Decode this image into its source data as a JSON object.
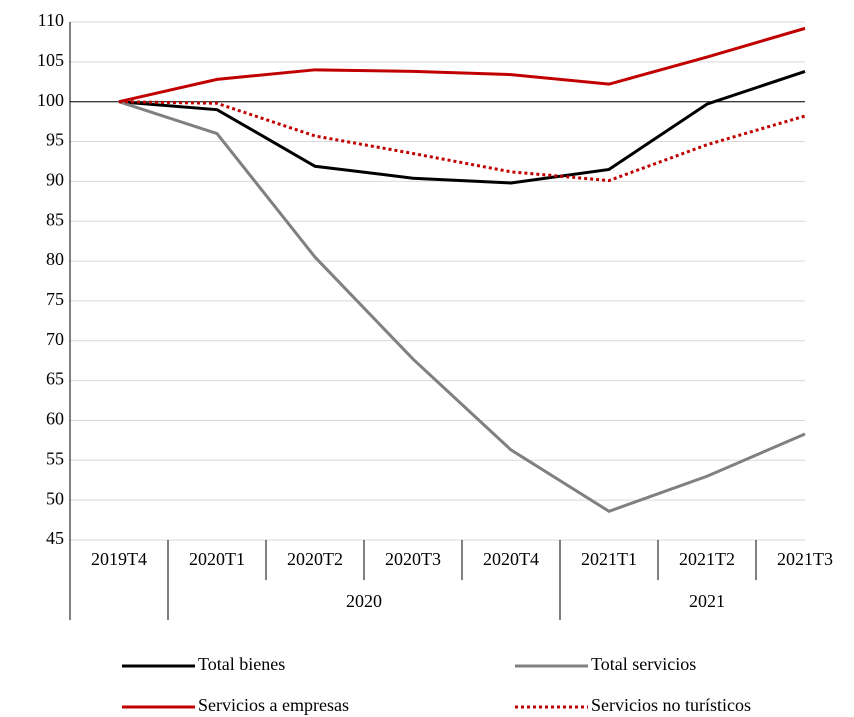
{
  "chart_data": {
    "type": "line",
    "categories": [
      "2019T4",
      "2020T1",
      "2020T2",
      "2020T3",
      "2020T4",
      "2021T1",
      "2021T2",
      "2021T3"
    ],
    "category_groups": [
      null,
      "2020",
      "2020",
      "2020",
      "2020",
      "2021",
      "2021",
      "2021"
    ],
    "series": [
      {
        "name": "Total bienes",
        "color": "#000000",
        "dash": "solid",
        "values": [
          100,
          99.0,
          91.9,
          90.4,
          89.8,
          91.5,
          99.7,
          103.8
        ]
      },
      {
        "name": "Total servicios",
        "color": "#808080",
        "dash": "solid",
        "values": [
          100,
          96.0,
          80.5,
          67.7,
          56.3,
          48.6,
          53.0,
          58.3
        ]
      },
      {
        "name": "Servicios a empresas",
        "color": "#c00000",
        "dash": "solid",
        "values": [
          100,
          102.8,
          104.0,
          103.8,
          103.4,
          102.2,
          105.6,
          109.2
        ]
      },
      {
        "name": "Servicios no turísticos",
        "color": "#c00000",
        "dash": "dotted",
        "values": [
          100,
          99.8,
          95.7,
          93.5,
          91.2,
          90.1,
          94.6,
          98.2
        ]
      }
    ],
    "reference_line": 100,
    "ylim": [
      45,
      110
    ],
    "yticks": [
      45,
      50,
      55,
      60,
      65,
      70,
      75,
      80,
      85,
      90,
      95,
      100,
      105,
      110
    ],
    "grid": true
  }
}
